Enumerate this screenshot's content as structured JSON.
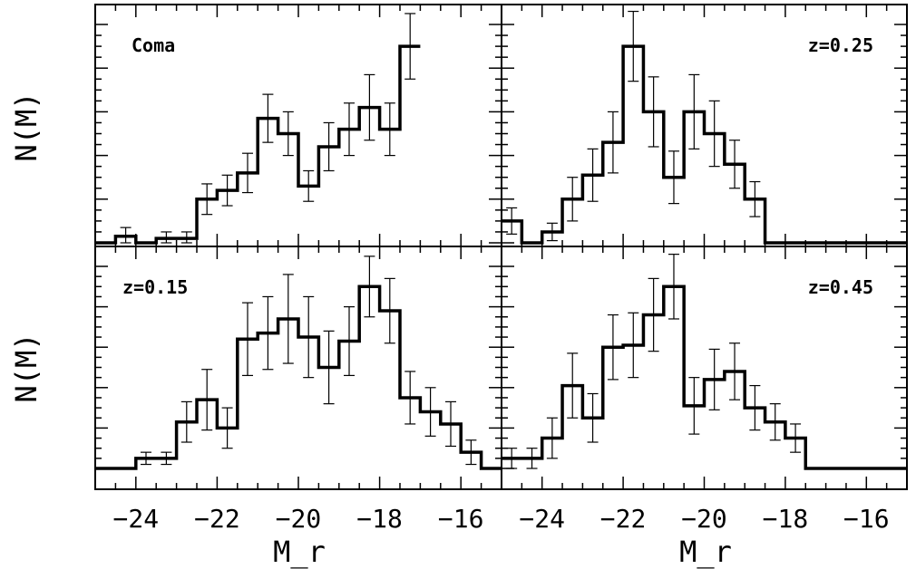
{
  "chart_data": [
    {
      "type": "histogram",
      "panel": "top-left",
      "label": "Coma",
      "ylabel": "N(M)",
      "xlabel": "",
      "xlim": [
        -25,
        -15
      ],
      "ylim": [
        0,
        10
      ],
      "bins": [
        -24.75,
        -24.25,
        -23.75,
        -23.25,
        -22.75,
        -22.25,
        -21.75,
        -21.25,
        -20.75,
        -20.25,
        -19.75,
        -19.25,
        -18.75,
        -18.25,
        -17.75,
        -17.25
      ],
      "values": [
        0,
        0.3,
        0,
        0.2,
        0.2,
        2.0,
        2.4,
        3.2,
        5.7,
        5.0,
        2.6,
        4.4,
        5.2,
        6.2,
        5.2,
        9.0
      ],
      "errors": [
        0,
        0.4,
        0,
        0.3,
        0.3,
        0.7,
        0.7,
        0.9,
        1.1,
        1.0,
        0.7,
        1.1,
        1.2,
        1.5,
        1.2,
        1.5
      ]
    },
    {
      "type": "histogram",
      "panel": "top-right",
      "label": "z=0.25",
      "ylabel": "",
      "xlabel": "",
      "xlim": [
        -25,
        -15
      ],
      "ylim": [
        0,
        10
      ],
      "bins": [
        -24.75,
        -24.25,
        -23.75,
        -23.25,
        -22.75,
        -22.25,
        -21.75,
        -21.25,
        -20.75,
        -20.25,
        -19.75,
        -19.25,
        -18.75,
        -18.25,
        -17.75,
        -17.25
      ],
      "values": [
        1.0,
        0,
        0.5,
        2.0,
        3.1,
        4.6,
        9.0,
        6.0,
        3.0,
        6.0,
        5.0,
        3.6,
        2.0,
        0,
        0,
        0
      ],
      "errors": [
        0.6,
        0,
        0.4,
        1.0,
        1.2,
        1.4,
        1.6,
        1.6,
        1.2,
        1.7,
        1.5,
        1.1,
        0.8,
        0,
        0,
        0
      ]
    },
    {
      "type": "histogram",
      "panel": "bottom-left",
      "label": "z=0.15",
      "ylabel": "N(M)",
      "xlabel": "M_r",
      "xlim": [
        -25,
        -15
      ],
      "ylim": [
        0,
        10
      ],
      "bins": [
        -24.75,
        -24.25,
        -23.75,
        -23.25,
        -22.75,
        -22.25,
        -21.75,
        -21.25,
        -20.75,
        -20.25,
        -19.75,
        -19.25,
        -18.75,
        -18.25,
        -17.75,
        -17.25,
        -16.75,
        -16.25,
        -15.75,
        -15.25
      ],
      "values": [
        0,
        0,
        0.5,
        0.5,
        2.3,
        3.4,
        2.0,
        6.4,
        6.7,
        7.4,
        6.5,
        5.0,
        6.3,
        9.0,
        7.8,
        3.5,
        2.8,
        2.2,
        0.8,
        0
      ],
      "errors": [
        0,
        0,
        0.3,
        0.3,
        1.0,
        1.5,
        1.0,
        1.8,
        1.8,
        2.2,
        2.0,
        1.8,
        1.7,
        1.5,
        1.6,
        1.3,
        1.2,
        1.1,
        0.6,
        0
      ]
    },
    {
      "type": "histogram",
      "panel": "bottom-right",
      "label": "z=0.45",
      "ylabel": "",
      "xlabel": "M_r",
      "xlim": [
        -25,
        -15
      ],
      "ylim": [
        0,
        10
      ],
      "bins": [
        -24.75,
        -24.25,
        -23.75,
        -23.25,
        -22.75,
        -22.25,
        -21.75,
        -21.25,
        -20.75,
        -20.25,
        -19.75,
        -19.25,
        -18.75,
        -18.25,
        -17.75,
        -17.25
      ],
      "values": [
        0.5,
        0.5,
        1.5,
        4.1,
        2.5,
        6.0,
        6.1,
        7.6,
        9.0,
        3.1,
        4.4,
        4.8,
        3.0,
        2.3,
        1.5,
        0
      ],
      "errors": [
        0.5,
        0.5,
        1.0,
        1.6,
        1.2,
        1.6,
        1.6,
        1.8,
        1.6,
        1.4,
        1.5,
        1.4,
        1.1,
        0.9,
        0.7,
        0
      ]
    }
  ],
  "x_ticks": [
    "−24",
    "−22",
    "−20",
    "−18",
    "−16"
  ],
  "x_tick_values": [
    -24,
    -22,
    -20,
    -18,
    -16
  ]
}
